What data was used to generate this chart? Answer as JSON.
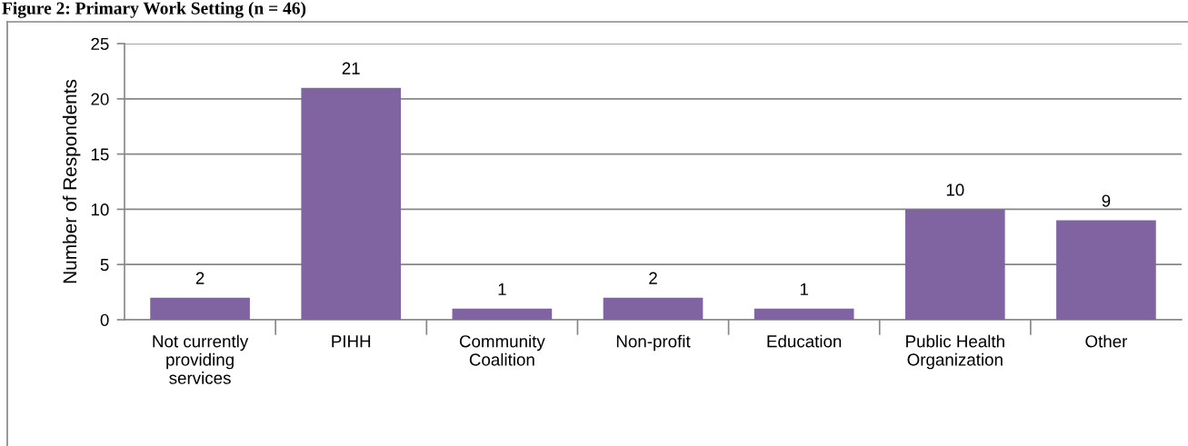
{
  "chart_data": {
    "type": "bar",
    "title": "Figure 2: Primary Work Setting (n = 46)",
    "ylabel": "Number of Respondents",
    "categories": [
      "Not currently\nproviding\nservices",
      "PIHH",
      "Community\nCoalition",
      "Non-profit",
      "Education",
      "Public Health\nOrganization",
      "Other"
    ],
    "values": [
      2,
      21,
      1,
      2,
      1,
      10,
      9
    ],
    "color": "#8064a2",
    "ylim": [
      0,
      25
    ],
    "yticks": [
      0,
      5,
      10,
      15,
      20,
      25
    ],
    "grid": "y",
    "data_labels": true
  }
}
